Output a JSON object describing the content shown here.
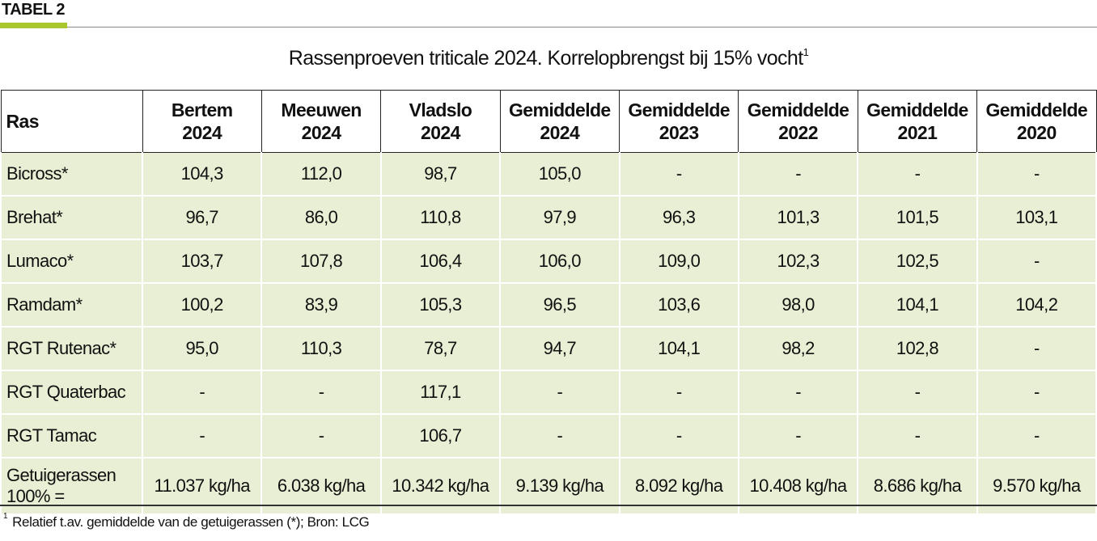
{
  "label": "TABEL 2",
  "caption": {
    "text": "Rassenproeven triticale 2024. Korrelopbrengst bij 15% vocht",
    "marker": "1"
  },
  "table": {
    "headers": [
      [
        "Ras",
        ""
      ],
      [
        "Bertem",
        "2024"
      ],
      [
        "Meeuwen",
        "2024"
      ],
      [
        "Vladslo",
        "2024"
      ],
      [
        "Gemiddelde",
        "2024"
      ],
      [
        "Gemiddelde",
        "2023"
      ],
      [
        "Gemiddelde",
        "2022"
      ],
      [
        "Gemiddelde",
        "2021"
      ],
      [
        "Gemiddelde",
        "2020"
      ]
    ],
    "rows": [
      [
        "Bicross*",
        "104,3",
        "112,0",
        "98,7",
        "105,0",
        "-",
        "-",
        "-",
        "-"
      ],
      [
        "Brehat*",
        "96,7",
        "86,0",
        "110,8",
        "97,9",
        "96,3",
        "101,3",
        "101,5",
        "103,1"
      ],
      [
        "Lumaco*",
        "103,7",
        "107,8",
        "106,4",
        "106,0",
        "109,0",
        "102,3",
        "102,5",
        "-"
      ],
      [
        "Ramdam*",
        "100,2",
        "83,9",
        "105,3",
        "96,5",
        "103,6",
        "98,0",
        "104,1",
        "104,2"
      ],
      [
        "RGT Rutenac*",
        "95,0",
        "110,3",
        "78,7",
        "94,7",
        "104,1",
        "98,2",
        "102,8",
        "-"
      ],
      [
        "RGT Quaterbac",
        "-",
        "-",
        "117,1",
        "-",
        "-",
        "-",
        "-",
        "-"
      ],
      [
        "RGT Tamac",
        "-",
        "-",
        "106,7",
        "-",
        "-",
        "-",
        "-",
        "-"
      ]
    ],
    "total_row": {
      "label_line1": "Getuigerassen",
      "label_line2": "100% =",
      "values": [
        "11.037 kg/ha",
        "6.038 kg/ha",
        "10.342 kg/ha",
        "9.139 kg/ha",
        "8.092 kg/ha",
        "10.408 kg/ha",
        "8.686 kg/ha",
        "9.570 kg/ha"
      ]
    }
  },
  "footnote": {
    "marker": "1",
    "text": "Relatief t.av. gemiddelde van de getuigerassen (*); Bron: LCG"
  },
  "colors": {
    "accent": "#a8c62e",
    "row_fill": "#e9efd4"
  }
}
